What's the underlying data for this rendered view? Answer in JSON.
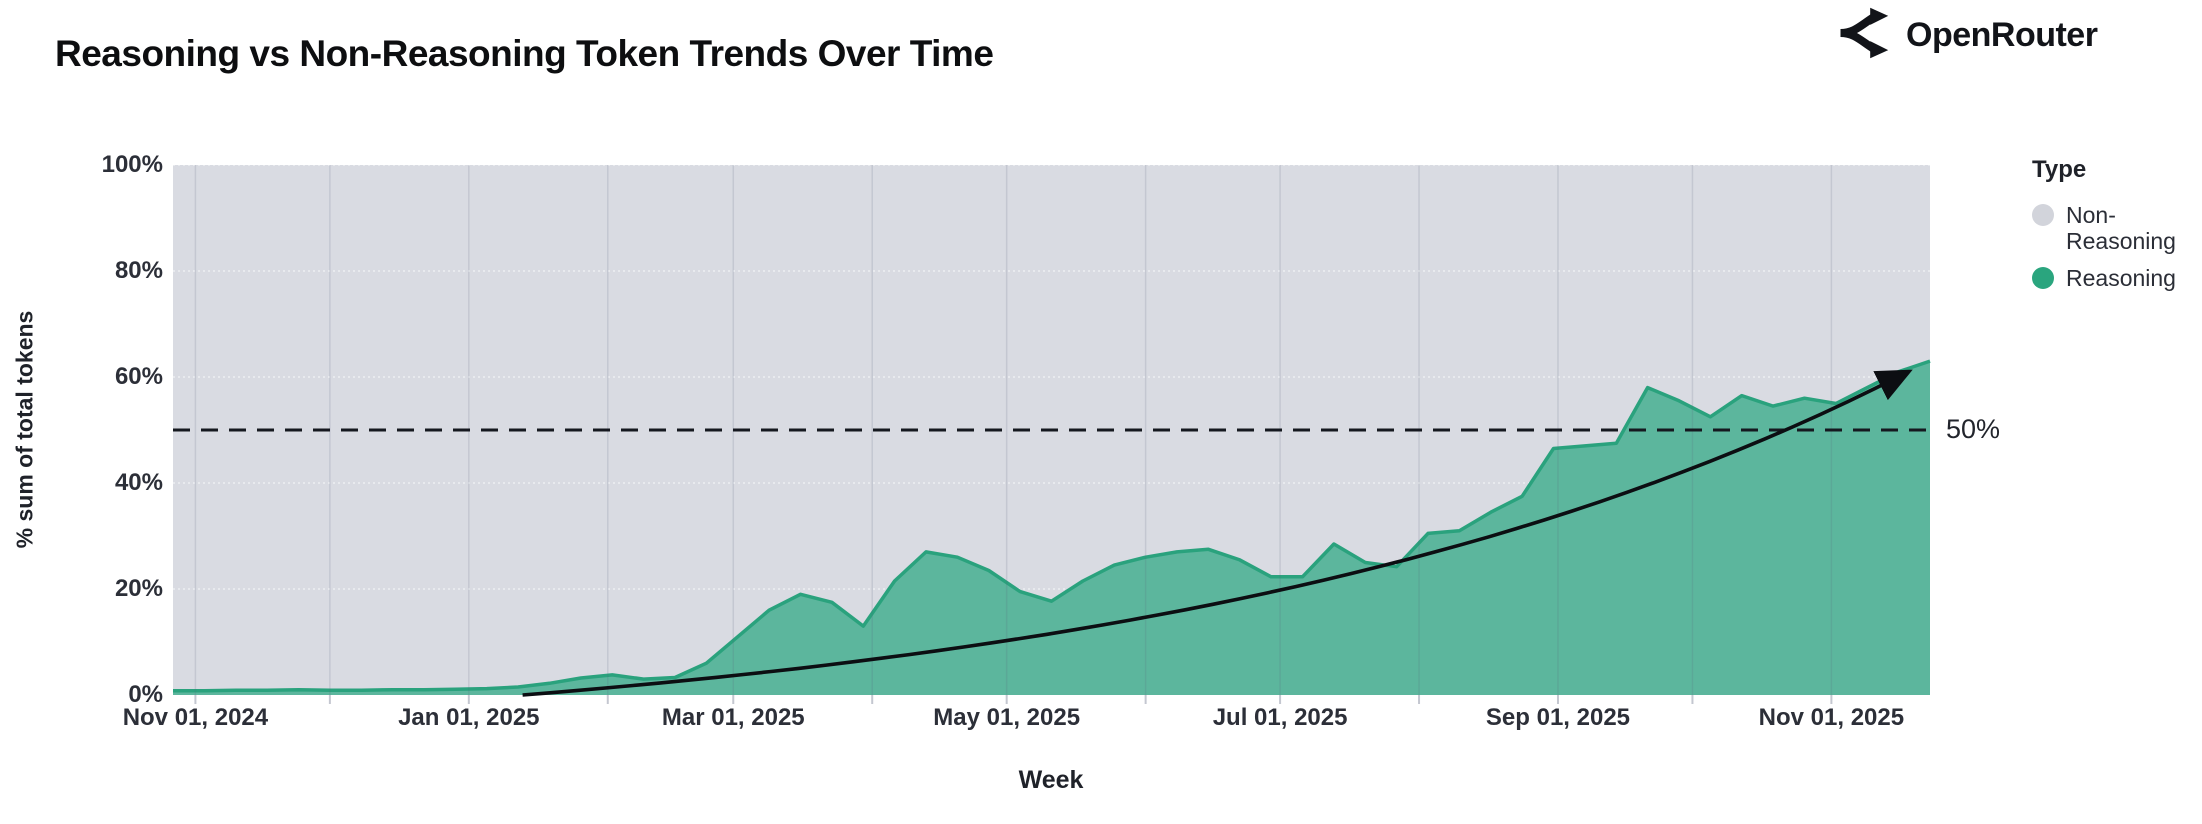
{
  "header": {
    "title": "Reasoning vs Non-Reasoning Token Trends Over Time",
    "brand": "OpenRouter"
  },
  "chart_data": {
    "type": "area",
    "stacked": "percent",
    "title": "Reasoning vs Non-Reasoning Token Trends Over Time",
    "xlabel": "Week",
    "ylabel": "% sum of total tokens",
    "ylim": [
      0,
      100
    ],
    "y_ticks": [
      "0%",
      "20%",
      "40%",
      "60%",
      "80%",
      "100%"
    ],
    "grid": "on",
    "legend_position": "right",
    "legend": {
      "title": "Type",
      "items": [
        {
          "label": "Non-Reasoning",
          "color": "#d2d4db"
        },
        {
          "label": "Reasoning",
          "color": "#2aa57e"
        }
      ]
    },
    "reference_line": {
      "value": 50,
      "label": "50%",
      "style": "dashed"
    },
    "x_months": [
      {
        "date": "2024-11-01",
        "label": "Nov 01, 2024"
      },
      {
        "date": "2024-12-01",
        "label": ""
      },
      {
        "date": "2025-01-01",
        "label": "Jan 01, 2025"
      },
      {
        "date": "2025-02-01",
        "label": ""
      },
      {
        "date": "2025-03-01",
        "label": "Mar 01, 2025"
      },
      {
        "date": "2025-04-01",
        "label": ""
      },
      {
        "date": "2025-05-01",
        "label": "May 01, 2025"
      },
      {
        "date": "2025-06-01",
        "label": ""
      },
      {
        "date": "2025-07-01",
        "label": "Jul 01, 2025"
      },
      {
        "date": "2025-08-01",
        "label": ""
      },
      {
        "date": "2025-09-01",
        "label": "Sep 01, 2025"
      },
      {
        "date": "2025-10-01",
        "label": ""
      },
      {
        "date": "2025-11-01",
        "label": "Nov 01, 2025"
      }
    ],
    "series": [
      {
        "name": "Non-Reasoning",
        "color": "#d9dbe2",
        "role": "remainder to 100%"
      },
      {
        "name": "Reasoning",
        "color": "#5cb69d",
        "stroke": "#2aa27d",
        "x": [
          "2024-10-27",
          "2024-11-03",
          "2024-11-10",
          "2024-11-17",
          "2024-11-24",
          "2024-12-01",
          "2024-12-08",
          "2024-12-15",
          "2024-12-22",
          "2024-12-29",
          "2025-01-05",
          "2025-01-12",
          "2025-01-19",
          "2025-01-26",
          "2025-02-02",
          "2025-02-09",
          "2025-02-16",
          "2025-02-23",
          "2025-03-02",
          "2025-03-09",
          "2025-03-16",
          "2025-03-23",
          "2025-03-30",
          "2025-04-06",
          "2025-04-13",
          "2025-04-20",
          "2025-04-27",
          "2025-05-04",
          "2025-05-11",
          "2025-05-18",
          "2025-05-25",
          "2025-06-01",
          "2025-06-08",
          "2025-06-15",
          "2025-06-22",
          "2025-06-29",
          "2025-07-06",
          "2025-07-13",
          "2025-07-20",
          "2025-07-27",
          "2025-08-03",
          "2025-08-10",
          "2025-08-17",
          "2025-08-24",
          "2025-08-31",
          "2025-09-07",
          "2025-09-14",
          "2025-09-21",
          "2025-09-28",
          "2025-10-05",
          "2025-10-12",
          "2025-10-19",
          "2025-10-26",
          "2025-11-02",
          "2025-11-09",
          "2025-11-16",
          "2025-11-23"
        ],
        "values": [
          0.8,
          0.8,
          0.9,
          0.9,
          1.0,
          0.9,
          0.9,
          1.0,
          1.0,
          1.1,
          1.2,
          1.5,
          2.2,
          3.2,
          3.8,
          3.0,
          3.3,
          6.0,
          11.0,
          16.0,
          19.0,
          17.5,
          13.0,
          21.5,
          27.0,
          26.0,
          23.5,
          19.5,
          17.7,
          21.5,
          24.5,
          26.0,
          27.0,
          27.5,
          25.5,
          22.3,
          22.3,
          28.5,
          25.0,
          24.2,
          30.5,
          31.0,
          34.5,
          37.5,
          46.5,
          47.0,
          47.5,
          58.0,
          55.5,
          52.5,
          56.5,
          54.5,
          56.0,
          55.0,
          58.0,
          61.0,
          63.0
        ]
      }
    ],
    "trend_arrow": {
      "start_date": "2025-01-13",
      "end_date": "2025-11-17",
      "start_value": 0,
      "end_value": 60.5,
      "shape": "exponential",
      "color": "#0c0e12"
    }
  }
}
